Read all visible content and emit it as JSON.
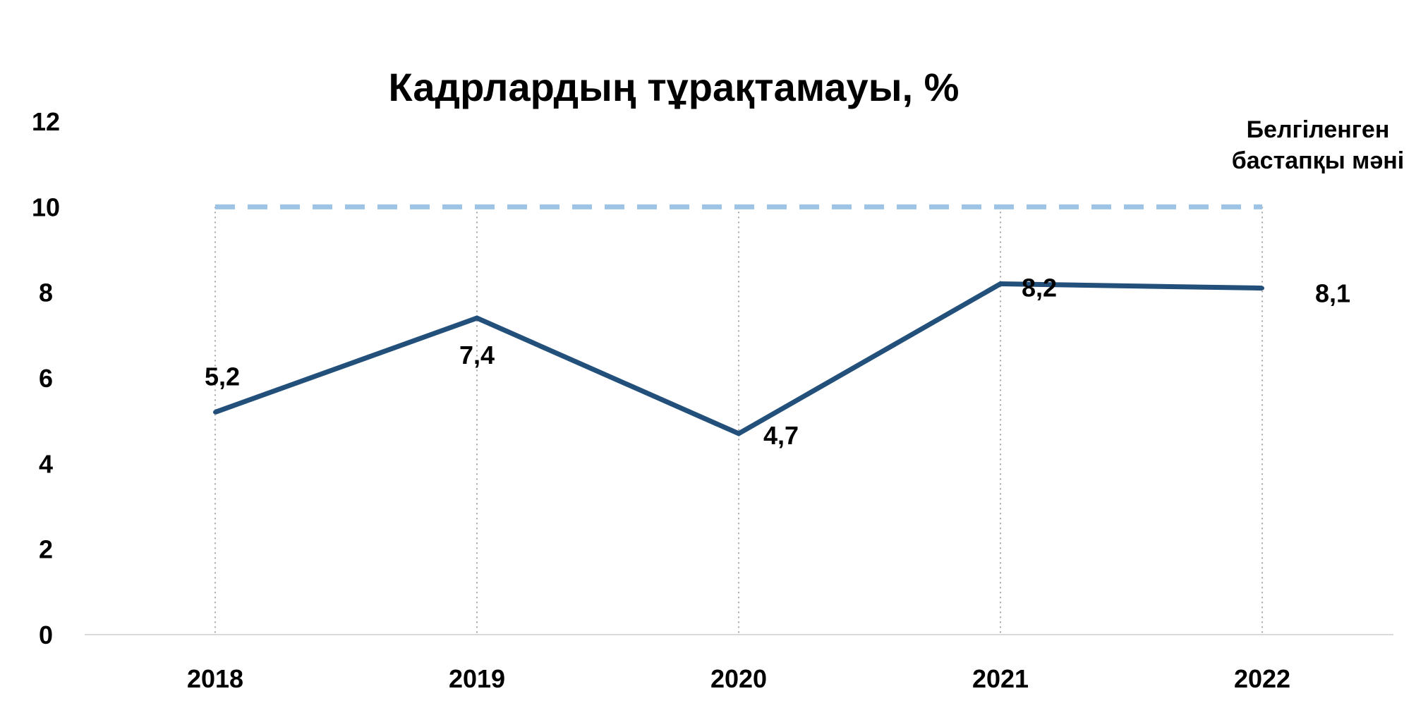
{
  "chart_data": {
    "type": "line",
    "title": "Кадрлардың тұрақтамауы, %",
    "xlabel": "",
    "ylabel": "",
    "categories": [
      "2018",
      "2019",
      "2020",
      "2021",
      "2022"
    ],
    "ylim": [
      0,
      12
    ],
    "yticks": [
      0,
      2,
      4,
      6,
      8,
      10,
      12
    ],
    "series": [
      {
        "values": [
          5.2,
          7.4,
          4.7,
          8.2,
          8.1
        ],
        "labels": [
          "5,2",
          "7,4",
          "4,7",
          "8,2",
          "8,1"
        ],
        "color": "#23507a",
        "line_style": "solid"
      }
    ],
    "reference_line": {
      "value": 10,
      "label_lines": [
        "Белгіленген",
        "бастапқы мәні"
      ],
      "color": "#9dc3e6",
      "line_style": "dashed"
    },
    "grid": {
      "vertical_dotted": true,
      "horizontal": false
    },
    "legend": "none"
  }
}
